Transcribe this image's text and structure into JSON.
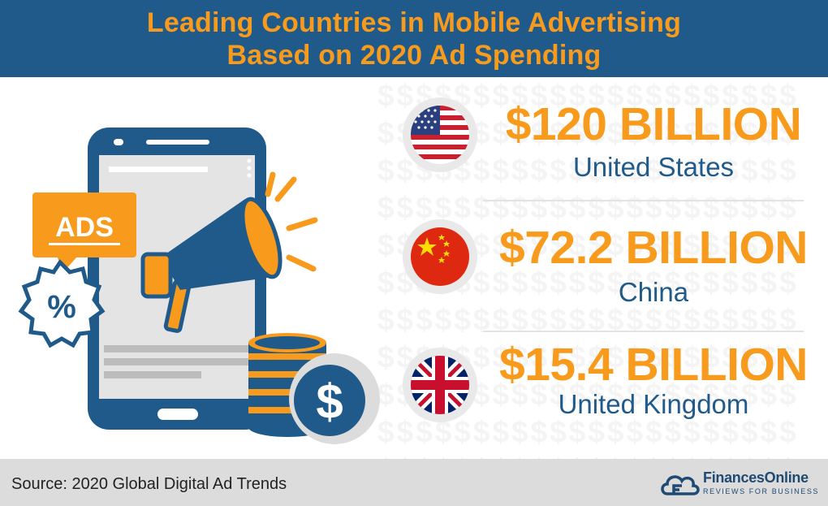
{
  "header": {
    "title_line1": "Leading Countries in Mobile Advertising",
    "title_line2": "Based on 2020 Ad Spending"
  },
  "illustration": {
    "ads_label": "ADS",
    "percent_symbol": "%",
    "dollar_symbol": "$"
  },
  "stats": [
    {
      "amount": "$120 BILLION",
      "country": "United States",
      "flag": "us-flag-icon"
    },
    {
      "amount": "$72.2 BILLION",
      "country": "China",
      "flag": "china-flag-icon"
    },
    {
      "amount": "$15.4 BILLION",
      "country": "United Kingdom",
      "flag": "uk-flag-icon"
    }
  ],
  "footer": {
    "source": "Source: 2020 Global Digital Ad Trends",
    "brand_name": "FinancesOnline",
    "brand_tagline": "REVIEWS FOR BUSINESS"
  },
  "colors": {
    "header_bg": "#1f5a8a",
    "accent_orange": "#f89b1c",
    "navy": "#1f5a8a",
    "footer_bg": "#dcdcdc"
  }
}
